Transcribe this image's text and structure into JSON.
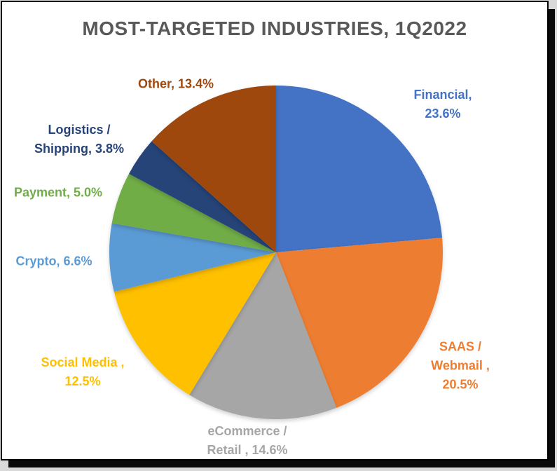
{
  "chart_data": {
    "type": "pie",
    "title": "MOST-TARGETED INDUSTRIES, 1Q2022",
    "title_color": "#595959",
    "legend": "none",
    "direction": "clockwise",
    "start_angle_deg": 0,
    "label_style": "outside, label text colored to match its slice",
    "slices": [
      {
        "label": "Financial",
        "value": 23.6,
        "color": "#4472C4",
        "label_lines": [
          "Financial,",
          "23.6%"
        ]
      },
      {
        "label": "SAAS / Webmail",
        "value": 20.5,
        "color": "#ED7D31",
        "label_lines": [
          "SAAS /",
          "Webmail ,",
          "20.5%"
        ]
      },
      {
        "label": "eCommerce / Retail",
        "value": 14.6,
        "color": "#A6A6A6",
        "label_lines": [
          "eCommerce /",
          "Retail , 14.6%"
        ]
      },
      {
        "label": "Social Media",
        "value": 12.5,
        "color": "#FFC000",
        "label_lines": [
          "Social Media ,",
          "12.5%"
        ]
      },
      {
        "label": "Crypto",
        "value": 6.6,
        "color": "#5B9BD5",
        "label_lines": [
          "Crypto, 6.6%"
        ]
      },
      {
        "label": "Payment",
        "value": 5.0,
        "color": "#70AD47",
        "label_lines": [
          "Payment, 5.0%"
        ]
      },
      {
        "label": "Logistics / Shipping",
        "value": 3.8,
        "color": "#264478",
        "label_lines": [
          "Logistics /",
          "Shipping, 3.8%"
        ]
      },
      {
        "label": "Other",
        "value": 13.4,
        "color": "#9E480E",
        "label_lines": [
          "Other, 13.4%"
        ]
      }
    ]
  }
}
